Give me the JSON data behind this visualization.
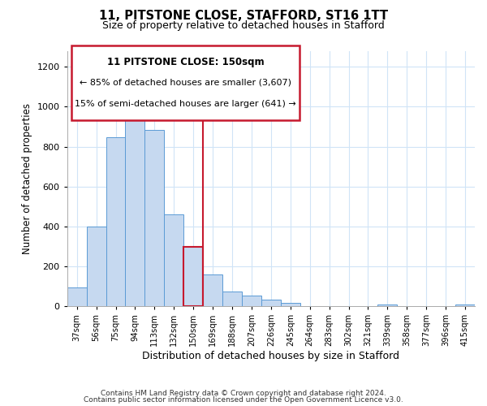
{
  "title": "11, PITSTONE CLOSE, STAFFORD, ST16 1TT",
  "subtitle": "Size of property relative to detached houses in Stafford",
  "xlabel": "Distribution of detached houses by size in Stafford",
  "ylabel": "Number of detached properties",
  "bar_labels": [
    "37sqm",
    "56sqm",
    "75sqm",
    "94sqm",
    "113sqm",
    "132sqm",
    "150sqm",
    "169sqm",
    "188sqm",
    "207sqm",
    "226sqm",
    "245sqm",
    "264sqm",
    "283sqm",
    "302sqm",
    "321sqm",
    "339sqm",
    "358sqm",
    "377sqm",
    "396sqm",
    "415sqm"
  ],
  "bar_values": [
    95,
    400,
    848,
    968,
    885,
    460,
    297,
    160,
    73,
    52,
    33,
    18,
    0,
    0,
    0,
    0,
    10,
    0,
    0,
    0,
    10
  ],
  "bar_color": "#c6d9f0",
  "bar_edge_color": "#5b9bd5",
  "highlight_bar_index": 6,
  "highlight_color": "#c6192e",
  "ylim": [
    0,
    1280
  ],
  "yticks": [
    0,
    200,
    400,
    600,
    800,
    1000,
    1200
  ],
  "annotation_title": "11 PITSTONE CLOSE: 150sqm",
  "annotation_line1": "← 85% of detached houses are smaller (3,607)",
  "annotation_line2": "15% of semi-detached houses are larger (641) →",
  "footer_line1": "Contains HM Land Registry data © Crown copyright and database right 2024.",
  "footer_line2": "Contains public sector information licensed under the Open Government Licence v3.0.",
  "background_color": "#ffffff",
  "grid_color": "#d0e4f7"
}
